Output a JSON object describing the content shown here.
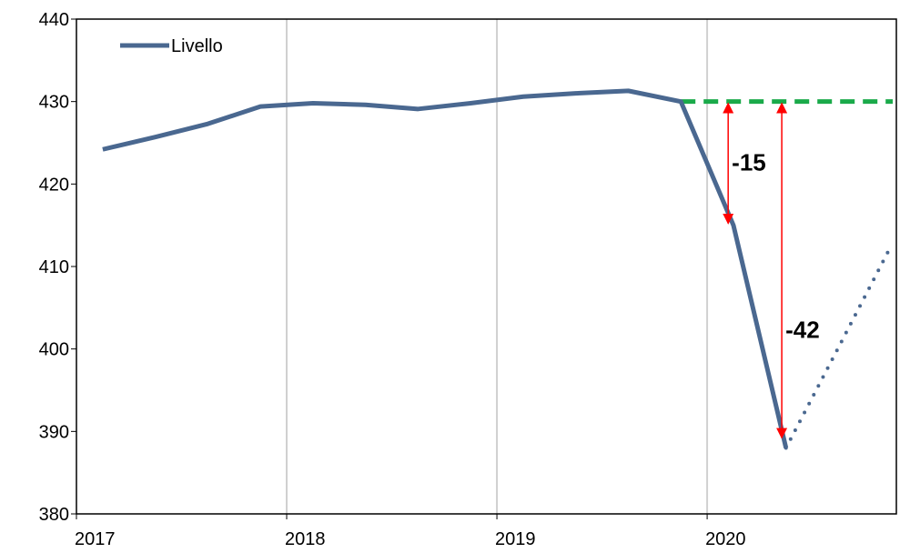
{
  "chart_data": {
    "type": "line",
    "x": [
      2017.125,
      2017.375,
      2017.625,
      2017.875,
      2018.125,
      2018.375,
      2018.625,
      2018.875,
      2019.125,
      2019.375,
      2019.625,
      2019.875,
      2020.125,
      2020.375,
      2020.625,
      2020.875
    ],
    "series": [
      {
        "name": "Livello",
        "color": "#4a6890",
        "style": "solid",
        "values": [
          424.2,
          425.7,
          427.3,
          429.4,
          429.8,
          429.6,
          429.1,
          429.8,
          430.6,
          431.0,
          431.3,
          430.0,
          415,
          388,
          null,
          null
        ]
      },
      {
        "color": "#4a6890",
        "style": "dotted",
        "values": [
          null,
          null,
          null,
          null,
          null,
          null,
          null,
          null,
          null,
          null,
          null,
          null,
          null,
          388,
          400.2,
          412.5
        ]
      }
    ],
    "reference": {
      "value": 430,
      "from": 2019.875,
      "color": "#1aaa4a"
    },
    "annotations": [
      {
        "x": 2020.1,
        "from": 430,
        "to": 415,
        "label": "-15",
        "color": "#ff0000"
      },
      {
        "x": 2020.355,
        "from": 430,
        "to": 389,
        "label": "-42",
        "color": "#ff0000"
      }
    ],
    "xlim": [
      2017,
      2020.9
    ],
    "xticks": [
      2017,
      2018,
      2019,
      2020
    ],
    "ylim": [
      380,
      440
    ],
    "yticks": [
      380,
      390,
      400,
      410,
      420,
      430,
      440
    ],
    "grid": "x",
    "legend": "top-left"
  }
}
